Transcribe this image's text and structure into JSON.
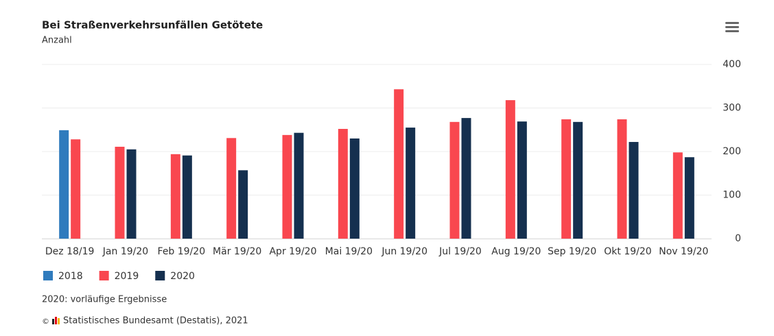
{
  "chart_data": {
    "type": "bar",
    "title": "Bei Straßenverkehrsunfällen Getötete",
    "subtitle": "Anzahl",
    "categories": [
      "Dez 18/19",
      "Jan 19/20",
      "Feb 19/20",
      "Mär 19/20",
      "Apr 19/20",
      "Mai 19/20",
      "Jun 19/20",
      "Jul 19/20",
      "Aug 19/20",
      "Sep 19/20",
      "Okt 19/20",
      "Nov 19/20"
    ],
    "series": [
      {
        "name": "2018",
        "color": "#2f7bbd",
        "values": [
          249,
          null,
          null,
          null,
          null,
          null,
          null,
          null,
          null,
          null,
          null,
          null
        ]
      },
      {
        "name": "2019",
        "color": "#f9474f",
        "values": [
          228,
          211,
          194,
          231,
          238,
          252,
          343,
          268,
          318,
          274,
          274,
          198
        ]
      },
      {
        "name": "2020",
        "color": "#15304f",
        "values": [
          null,
          205,
          191,
          157,
          243,
          230,
          255,
          277,
          269,
          268,
          222,
          187
        ]
      }
    ],
    "ylim": [
      0,
      400
    ],
    "yticks": [
      0,
      100,
      200,
      300,
      400
    ],
    "grid": true,
    "y_axis_side": "right",
    "note": "2020: vorläufige Ergebnisse",
    "credits": {
      "symbol": "©",
      "text": "Statistisches Bundesamt (Destatis), 2021"
    }
  }
}
